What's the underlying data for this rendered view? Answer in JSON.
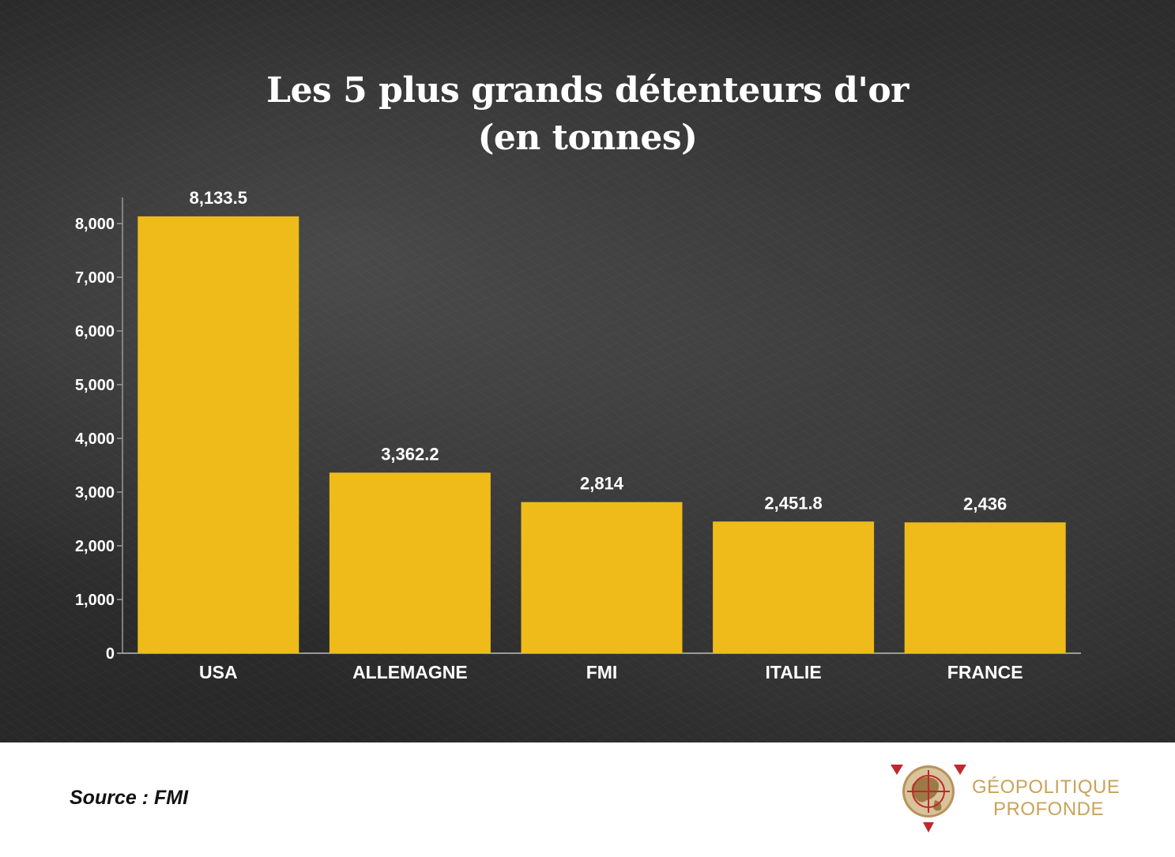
{
  "title_line1": "Les 5 plus grands détenteurs d'or",
  "title_line2": "(en tonnes)",
  "source": "Source : FMI",
  "logo": {
    "line1": "GÉOPOLITIQUE",
    "line2": "PROFONDE",
    "icon": "globe-crosshair-icon"
  },
  "colors": {
    "bar": "#EEBB1A",
    "background": "#2b2b2b",
    "text": "#ffffff",
    "logo": "#c9a35a"
  },
  "chart_data": {
    "type": "bar",
    "title": "Les 5 plus grands détenteurs d'or (en tonnes)",
    "categories": [
      "USA",
      "ALLEMAGNE",
      "FMI",
      "ITALIE",
      "FRANCE"
    ],
    "values": [
      8133.5,
      3362.2,
      2814,
      2451.8,
      2436
    ],
    "data_labels": [
      "8,133.5",
      "3,362.2",
      "2,814",
      "2,451.8",
      "2,436"
    ],
    "y_ticks": [
      0,
      1000,
      2000,
      3000,
      4000,
      5000,
      6000,
      7000,
      8000
    ],
    "y_tick_labels": [
      "0",
      "1,000",
      "2,000",
      "3,000",
      "4,000",
      "5,000",
      "6,000",
      "7,000",
      "8,000"
    ],
    "ylim": [
      0,
      8133.5
    ],
    "xlabel": "",
    "ylabel": "",
    "grid": false,
    "legend": "none"
  }
}
